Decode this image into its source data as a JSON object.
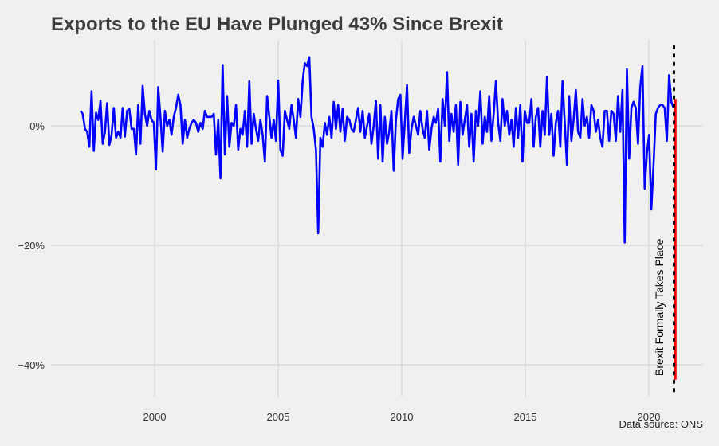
{
  "chart_data": {
    "type": "line",
    "title": "Exports to the EU Have Plunged 43% Since Brexit",
    "source": "Data source: ONS",
    "xlabel": "",
    "ylabel": "",
    "x_ticks": [
      2000,
      2005,
      2010,
      2015,
      2020
    ],
    "x_tick_labels": [
      "2000",
      "2005",
      "2010",
      "2015",
      "2020"
    ],
    "y_ticks": [
      0,
      -20,
      -40
    ],
    "y_tick_labels": [
      "0%",
      "−20%",
      "−40%"
    ],
    "xlim": [
      1996.4,
      2021.8
    ],
    "ylim": [
      -45,
      14.5
    ],
    "grid": true,
    "colors": {
      "series": "#0000ff",
      "highlight": "#ff0000",
      "event": "#000000",
      "background": "#f0f0f0",
      "grid": "#d0d0d0"
    },
    "series": [
      {
        "name": "",
        "color": "#0000ff",
        "points": [
          [
            1997.0,
            2.5
          ],
          [
            1997.1,
            2.0
          ],
          [
            1997.2,
            -0.5
          ],
          [
            1997.3,
            -1.0
          ],
          [
            1997.4,
            -3.5
          ],
          [
            1997.5,
            5.8
          ],
          [
            1997.6,
            -4.2
          ],
          [
            1997.7,
            2.2
          ],
          [
            1997.8,
            1.0
          ],
          [
            1997.9,
            4.2
          ],
          [
            1998.0,
            -3.0
          ],
          [
            1998.1,
            -1.0
          ],
          [
            1998.2,
            3.8
          ],
          [
            1998.3,
            -3.2
          ],
          [
            1998.4,
            -1.5
          ],
          [
            1998.5,
            3.0
          ],
          [
            1998.6,
            -2.0
          ],
          [
            1998.7,
            -1.0
          ],
          [
            1998.8,
            -2.0
          ],
          [
            1998.9,
            3.0
          ],
          [
            1999.0,
            -1.8
          ],
          [
            1999.1,
            2.5
          ],
          [
            1999.2,
            2.8
          ],
          [
            1999.3,
            -0.5
          ],
          [
            1999.4,
            -0.5
          ],
          [
            1999.5,
            -4.8
          ],
          [
            1999.6,
            3.5
          ],
          [
            1999.7,
            -3.0
          ],
          [
            1999.8,
            6.7
          ],
          [
            1999.9,
            2.0
          ],
          [
            2000.0,
            0.0
          ],
          [
            2000.1,
            2.5
          ],
          [
            2000.2,
            1.0
          ],
          [
            2000.3,
            0.5
          ],
          [
            2000.4,
            -7.3
          ],
          [
            2000.5,
            6.5
          ],
          [
            2000.6,
            1.5
          ],
          [
            2000.7,
            -4.3
          ],
          [
            2000.8,
            2.5
          ],
          [
            2000.9,
            0.0
          ],
          [
            2001.0,
            1.0
          ],
          [
            2001.1,
            -1.5
          ],
          [
            2001.2,
            1.5
          ],
          [
            2001.3,
            3.0
          ],
          [
            2001.4,
            5.2
          ],
          [
            2001.5,
            3.5
          ],
          [
            2001.6,
            -3.0
          ],
          [
            2001.7,
            1.0
          ],
          [
            2001.8,
            -2.0
          ],
          [
            2001.9,
            -0.5
          ],
          [
            2002.0,
            0.5
          ],
          [
            2002.1,
            1.0
          ],
          [
            2002.2,
            0.5
          ],
          [
            2002.3,
            -1.0
          ],
          [
            2002.4,
            0.5
          ],
          [
            2002.5,
            -0.5
          ],
          [
            2002.6,
            2.5
          ],
          [
            2002.7,
            1.5
          ],
          [
            2002.8,
            1.5
          ],
          [
            2002.9,
            1.5
          ],
          [
            2003.0,
            2.0
          ],
          [
            2003.1,
            -4.8
          ],
          [
            2003.2,
            1.0
          ],
          [
            2003.3,
            -8.8
          ],
          [
            2003.4,
            10.2
          ],
          [
            2003.5,
            -4.8
          ],
          [
            2003.6,
            5.0
          ],
          [
            2003.7,
            -3.5
          ],
          [
            2003.8,
            0.5
          ],
          [
            2003.9,
            0.0
          ],
          [
            2004.0,
            3.5
          ],
          [
            2004.1,
            -4.0
          ],
          [
            2004.2,
            -0.5
          ],
          [
            2004.3,
            -1.5
          ],
          [
            2004.4,
            2.5
          ],
          [
            2004.5,
            -3.5
          ],
          [
            2004.6,
            7.5
          ],
          [
            2004.7,
            -3.0
          ],
          [
            2004.8,
            2.0
          ],
          [
            2004.9,
            -0.5
          ],
          [
            2005.0,
            -2.5
          ],
          [
            2005.1,
            1.0
          ],
          [
            2005.2,
            -1.5
          ],
          [
            2005.3,
            -6.0
          ],
          [
            2005.4,
            5.0
          ],
          [
            2005.5,
            1.5
          ],
          [
            2005.6,
            -2.0
          ],
          [
            2005.7,
            1.0
          ],
          [
            2005.8,
            -2.5
          ],
          [
            2005.9,
            7.6
          ],
          [
            2006.0,
            -4.0
          ],
          [
            2006.1,
            -5.0
          ],
          [
            2006.2,
            2.5
          ],
          [
            2006.3,
            1.0
          ],
          [
            2006.4,
            -0.5
          ],
          [
            2006.5,
            3.5
          ],
          [
            2006.6,
            1.0
          ],
          [
            2006.7,
            -2.0
          ],
          [
            2006.8,
            4.5
          ],
          [
            2006.9,
            1.5
          ],
          [
            2007.0,
            7.5
          ],
          [
            2007.1,
            10.5
          ],
          [
            2007.2,
            10.0
          ],
          [
            2007.3,
            11.5
          ],
          [
            2007.4,
            1.5
          ],
          [
            2007.5,
            -0.5
          ],
          [
            2007.6,
            -4.0
          ],
          [
            2007.7,
            -18.0
          ],
          [
            2007.8,
            -2.0
          ],
          [
            2007.9,
            -3.5
          ],
          [
            2008.0,
            0.5
          ],
          [
            2008.1,
            -1.5
          ],
          [
            2008.2,
            1.5
          ],
          [
            2008.3,
            -2.0
          ],
          [
            2008.4,
            4.0
          ],
          [
            2008.5,
            -0.5
          ],
          [
            2008.6,
            3.5
          ],
          [
            2008.7,
            -1.0
          ],
          [
            2008.8,
            2.8
          ],
          [
            2008.9,
            -2.5
          ],
          [
            2009.0,
            1.5
          ],
          [
            2009.1,
            1.0
          ],
          [
            2009.2,
            -0.5
          ],
          [
            2009.3,
            -1.0
          ],
          [
            2009.4,
            1.0
          ],
          [
            2009.5,
            3.0
          ],
          [
            2009.6,
            -1.0
          ],
          [
            2009.7,
            2.5
          ],
          [
            2009.8,
            -2.0
          ],
          [
            2009.9,
            0.0
          ],
          [
            2010.0,
            2.0
          ],
          [
            2010.1,
            -3.0
          ],
          [
            2010.2,
            0.0
          ],
          [
            2010.3,
            4.2
          ],
          [
            2010.4,
            -5.5
          ],
          [
            2010.5,
            3.5
          ],
          [
            2010.6,
            -6.0
          ],
          [
            2010.7,
            1.5
          ],
          [
            2010.8,
            -3.0
          ],
          [
            2010.9,
            -1.0
          ],
          [
            2011.0,
            2.5
          ],
          [
            2011.1,
            -7.5
          ],
          [
            2011.2,
            1.0
          ],
          [
            2011.3,
            4.5
          ],
          [
            2011.4,
            5.2
          ],
          [
            2011.5,
            -5.5
          ],
          [
            2011.6,
            0.5
          ],
          [
            2011.7,
            6.8
          ],
          [
            2011.8,
            -4.5
          ],
          [
            2011.9,
            -0.5
          ],
          [
            2012.0,
            1.5
          ],
          [
            2012.1,
            0.0
          ],
          [
            2012.2,
            -1.5
          ],
          [
            2012.3,
            2.5
          ],
          [
            2012.4,
            -0.5
          ],
          [
            2012.5,
            -2.0
          ],
          [
            2012.6,
            2.5
          ],
          [
            2012.7,
            -4.0
          ],
          [
            2012.8,
            -0.5
          ],
          [
            2012.9,
            1.5
          ],
          [
            2013.0,
            0.5
          ],
          [
            2013.1,
            2.8
          ],
          [
            2013.2,
            -6.0
          ],
          [
            2013.3,
            4.5
          ],
          [
            2013.4,
            0.0
          ],
          [
            2013.5,
            9.0
          ],
          [
            2013.6,
            -2.5
          ],
          [
            2013.7,
            2.0
          ],
          [
            2013.8,
            -1.0
          ],
          [
            2013.9,
            3.5
          ],
          [
            2014.0,
            -6.5
          ],
          [
            2014.1,
            4.0
          ],
          [
            2014.2,
            -1.5
          ],
          [
            2014.3,
            1.0
          ],
          [
            2014.4,
            3.5
          ],
          [
            2014.5,
            -3.5
          ],
          [
            2014.6,
            2.0
          ],
          [
            2014.7,
            -6.0
          ],
          [
            2014.8,
            2.5
          ],
          [
            2014.9,
            0.0
          ],
          [
            2015.0,
            5.8
          ],
          [
            2015.1,
            -3.0
          ],
          [
            2015.2,
            1.5
          ],
          [
            2015.3,
            -1.0
          ],
          [
            2015.4,
            5.0
          ],
          [
            2015.5,
            -2.5
          ],
          [
            2015.6,
            2.0
          ],
          [
            2015.7,
            7.5
          ],
          [
            2015.8,
            0.5
          ],
          [
            2015.9,
            -2.5
          ],
          [
            2016.0,
            4.5
          ],
          [
            2016.1,
            0.0
          ],
          [
            2016.2,
            2.5
          ],
          [
            2016.3,
            -1.5
          ],
          [
            2016.4,
            1.0
          ],
          [
            2016.5,
            -3.5
          ],
          [
            2016.6,
            3.0
          ],
          [
            2016.7,
            -2.0
          ],
          [
            2016.8,
            3.5
          ],
          [
            2016.9,
            -6.0
          ],
          [
            2017.0,
            2.5
          ],
          [
            2017.1,
            0.5
          ],
          [
            2017.2,
            0.5
          ],
          [
            2017.3,
            4.5
          ],
          [
            2017.4,
            -3.5
          ],
          [
            2017.5,
            1.5
          ],
          [
            2017.6,
            3.0
          ],
          [
            2017.7,
            -3.5
          ],
          [
            2017.8,
            2.5
          ],
          [
            2017.9,
            -1.5
          ],
          [
            2018.0,
            8.2
          ],
          [
            2018.1,
            -1.5
          ],
          [
            2018.2,
            2.0
          ],
          [
            2018.3,
            -5.0
          ],
          [
            2018.4,
            0.5
          ],
          [
            2018.5,
            2.5
          ],
          [
            2018.6,
            -3.5
          ],
          [
            2018.7,
            7.5
          ],
          [
            2018.8,
            0.5
          ],
          [
            2018.9,
            -6.5
          ],
          [
            2019.0,
            5.0
          ],
          [
            2019.1,
            -2.5
          ],
          [
            2019.2,
            1.0
          ],
          [
            2019.3,
            6.0
          ],
          [
            2019.4,
            -1.0
          ],
          [
            2019.5,
            -2.0
          ],
          [
            2019.6,
            4.5
          ],
          [
            2019.7,
            0.0
          ],
          [
            2019.8,
            1.5
          ],
          [
            2019.9,
            -2.0
          ],
          [
            2020.0,
            3.5
          ],
          [
            2020.1,
            2.5
          ],
          [
            2020.2,
            -1.0
          ],
          [
            2020.3,
            1.0
          ],
          [
            2020.4,
            -2.0
          ],
          [
            2020.5,
            -3.5
          ],
          [
            2020.6,
            2.5
          ],
          [
            2020.7,
            2.5
          ],
          [
            2020.8,
            -2.5
          ],
          [
            2020.9,
            2.5
          ],
          [
            2021.0,
            2.0
          ],
          [
            2021.1,
            -2.5
          ],
          [
            2021.2,
            5.0
          ],
          [
            2021.3,
            -1.0
          ],
          [
            2021.4,
            6.0
          ],
          [
            2021.5,
            -19.5
          ],
          [
            2021.6,
            9.5
          ],
          [
            2021.7,
            -5.5
          ],
          [
            2021.8,
            3.0
          ],
          [
            2021.9,
            4.0
          ],
          [
            2022.0,
            3.0
          ],
          [
            2022.1,
            -3.0
          ],
          [
            2022.2,
            6.5
          ],
          [
            2022.3,
            10.0
          ],
          [
            2022.4,
            -10.5
          ],
          [
            2022.5,
            -4.5
          ],
          [
            2022.6,
            -1.5
          ],
          [
            2022.7,
            -14.0
          ],
          [
            2022.8,
            -6.5
          ],
          [
            2022.9,
            2.0
          ],
          [
            2023.0,
            3.0
          ],
          [
            2023.1,
            3.5
          ],
          [
            2023.2,
            3.5
          ],
          [
            2023.3,
            3.0
          ],
          [
            2023.4,
            -2.5
          ],
          [
            2023.5,
            8.5
          ],
          [
            2023.6,
            4.0
          ],
          [
            2023.7,
            3.0
          ]
        ]
      }
    ],
    "highlight_segment": {
      "x": 2021.05,
      "y_top": 4.5,
      "y_bottom": -42.5,
      "color": "#ff0000"
    },
    "event_line": {
      "x": 2021.0,
      "style": "dotted",
      "color": "#000000",
      "label": "Brexit Formally Takes Place"
    }
  }
}
